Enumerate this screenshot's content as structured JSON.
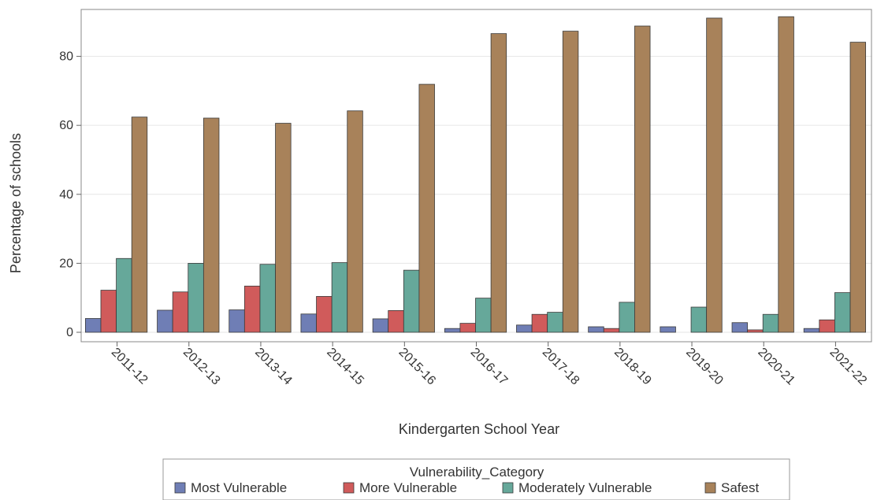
{
  "chart_data": {
    "type": "bar",
    "xlabel": "Kindergarten School Year",
    "ylabel": "Percentage of schools",
    "categories": [
      "2011-12",
      "2012-13",
      "2013-14",
      "2014-15",
      "2015-16",
      "2016-17",
      "2017-18",
      "2018-19",
      "2019-20",
      "2020-21",
      "2021-22"
    ],
    "ylim": [
      0,
      93.6
    ],
    "yticks": [
      0,
      20,
      40,
      60,
      80
    ],
    "grid": true,
    "legend": {
      "title": "Vulnerability_Category",
      "placement": "bottom"
    },
    "series": [
      {
        "name": "Most Vulnerable",
        "color": "#6f7eb5",
        "values": [
          4.0,
          6.4,
          6.5,
          5.3,
          3.9,
          1.1,
          2.1,
          1.6,
          1.6,
          2.8,
          1.1
        ]
      },
      {
        "name": "More Vulnerable",
        "color": "#d05b5b",
        "values": [
          12.2,
          11.7,
          13.4,
          10.4,
          6.3,
          2.6,
          5.2,
          1.1,
          0.0,
          0.7,
          3.6
        ]
      },
      {
        "name": "Moderately Vulnerable",
        "color": "#66a89a",
        "values": [
          21.4,
          20.0,
          19.7,
          20.2,
          18.0,
          9.9,
          5.8,
          8.7,
          7.3,
          5.2,
          11.5
        ]
      },
      {
        "name": "Safest",
        "color": "#a8825a",
        "values": [
          62.4,
          62.1,
          60.6,
          64.2,
          71.9,
          86.6,
          87.3,
          88.8,
          91.1,
          91.5,
          84.1
        ]
      }
    ]
  }
}
